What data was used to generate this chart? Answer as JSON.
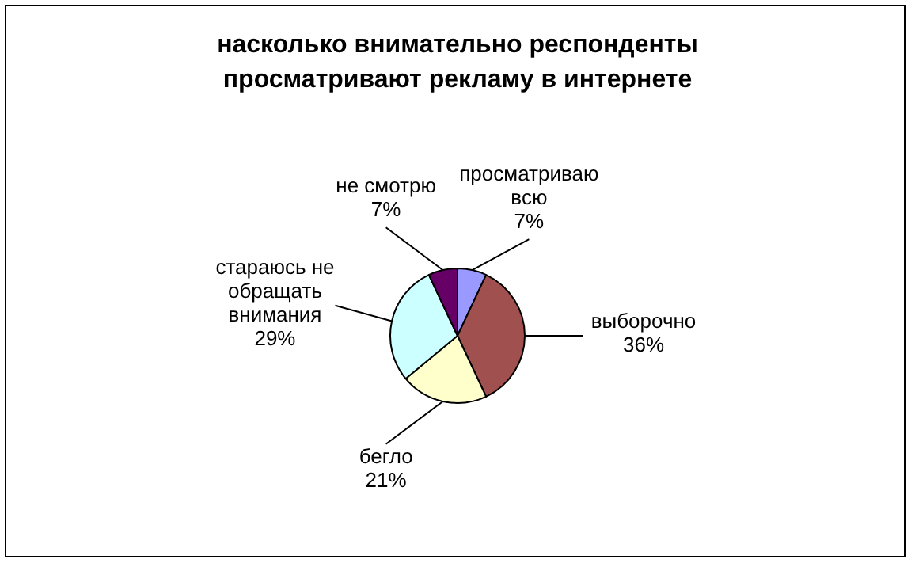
{
  "chart_data": {
    "type": "pie",
    "title": "насколько внимательно респонденты просматривают рекламу в интернете",
    "categories": [
      "просматриваю всю",
      "выборочно",
      "бегло",
      "стараюсь не обращать внимания",
      "не смотрю"
    ],
    "values": [
      7,
      36,
      21,
      29,
      7
    ],
    "colors": [
      "#9999ff",
      "#a0504f",
      "#ffffcc",
      "#ccffff",
      "#660066"
    ],
    "value_labels": [
      "7%",
      "36%",
      "21%",
      "29%",
      "7%"
    ],
    "legend": false
  }
}
